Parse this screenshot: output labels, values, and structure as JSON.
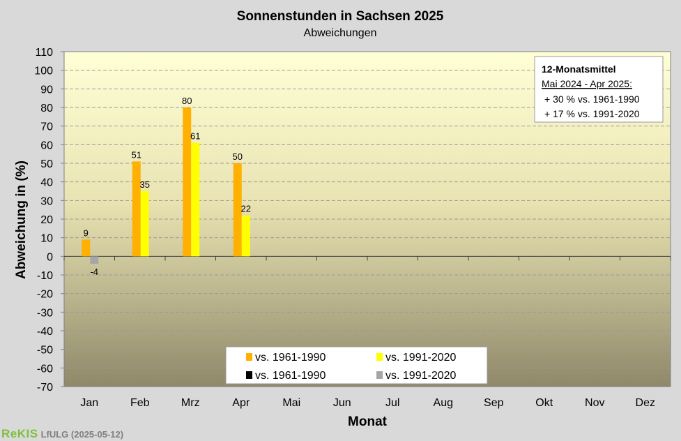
{
  "chart_data": {
    "type": "bar",
    "title": "Sonnenstunden  in Sachsen 2025",
    "subtitle": "Abweichungen",
    "xlabel": "Monat",
    "ylabel": "Abweichung in (%)",
    "ylim": [
      -70,
      110
    ],
    "ytick_step": 10,
    "categories": [
      "Jan",
      "Feb",
      "Mrz",
      "Apr",
      "Mai",
      "Jun",
      "Jul",
      "Aug",
      "Sep",
      "Okt",
      "Nov",
      "Dez"
    ],
    "series": [
      {
        "name": "vs. 1961-1990",
        "color": "#ffb000",
        "values": [
          9,
          51,
          80,
          50,
          null,
          null,
          null,
          null,
          null,
          null,
          null,
          null
        ]
      },
      {
        "name": "vs. 1991-2020",
        "color": "#ffff00",
        "values": [
          null,
          35,
          61,
          22,
          null,
          null,
          null,
          null,
          null,
          null,
          null,
          null
        ]
      },
      {
        "name": "vs. 1961-1990",
        "color": "#000000",
        "values": [
          null,
          null,
          null,
          null,
          null,
          null,
          null,
          null,
          null,
          null,
          null,
          null
        ]
      },
      {
        "name": "vs. 1991-2020",
        "color": "#a6a6a6",
        "values": [
          -4,
          null,
          null,
          null,
          null,
          null,
          null,
          null,
          null,
          null,
          null,
          null
        ]
      }
    ],
    "grid": true,
    "legend_position": "bottom-center",
    "annotation": {
      "title": "12-Monatsmittel",
      "period": "Mai 2024 - Apr 2025:",
      "lines": [
        "+ 30 % vs. 1961-1990",
        "+ 17 % vs. 1991-2020"
      ]
    }
  },
  "footer": {
    "brand": "ReKIS",
    "org": "LfULG (2025-05-12)"
  }
}
